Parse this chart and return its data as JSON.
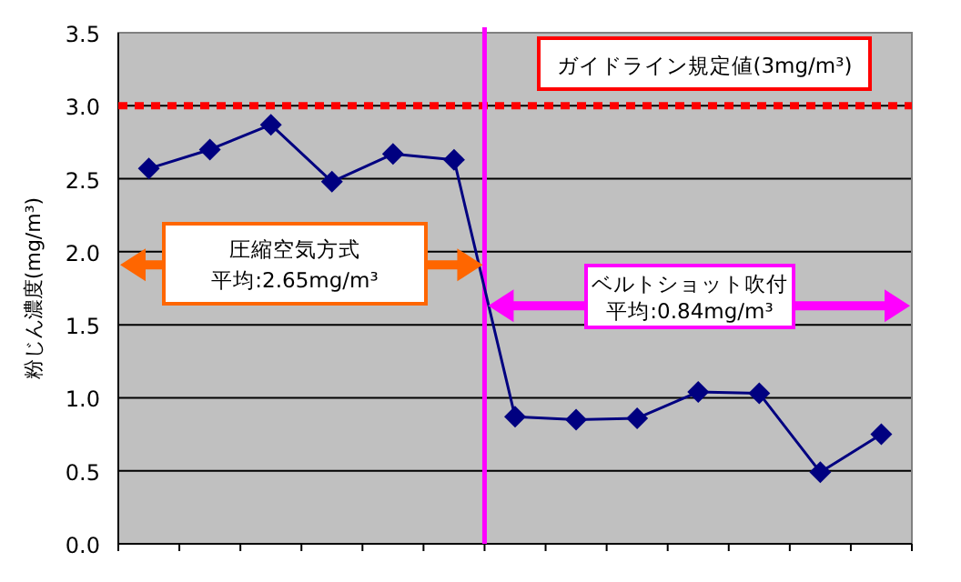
{
  "chart_data": {
    "type": "line",
    "ylabel": "粉じん濃度(mg/m³)",
    "categories": [
      null,
      null,
      null,
      null,
      null,
      null,
      null,
      null,
      null,
      null,
      null,
      null,
      null
    ],
    "series": [
      {
        "color": "#000080",
        "values": [
          2.57,
          2.7,
          2.87,
          2.48,
          2.67,
          2.63,
          0.87,
          0.85,
          0.86,
          1.04,
          1.03,
          0.49,
          0.75
        ]
      }
    ],
    "ylim": [
      0,
      3.5
    ],
    "yticks": [
      {
        "value": 0,
        "label": "0.0"
      },
      0.5,
      {
        "value": 1,
        "label": "1.0"
      },
      1.5,
      {
        "value": 2,
        "label": "2.0"
      },
      2.5,
      {
        "value": 3,
        "label": "3.0"
      },
      3.5
    ],
    "grid": "y",
    "marker": "diamond",
    "line_style": "solid",
    "ref_lines": [
      {
        "axis": "y",
        "value": 3,
        "color": "#ff0000",
        "line_style": "dotted"
      }
    ],
    "annotations": [
      "ガイドライン規定値(3mg/m³)",
      "圧縮空気方式",
      "平均:2.65mg/m³",
      "ベルトショット吹付",
      "平均:0.84mg/m³"
    ]
  }
}
